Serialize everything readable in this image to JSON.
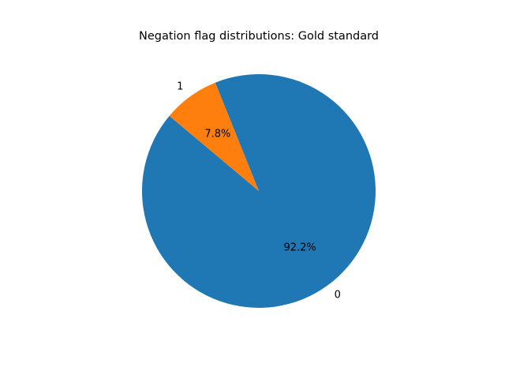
{
  "chart_data": {
    "type": "pie",
    "title": "Negation flag distributions: Gold standard",
    "categories": [
      "0",
      "1"
    ],
    "values": [
      92.2,
      7.8
    ],
    "value_labels": [
      "92.2%",
      "7.8%"
    ],
    "colors": [
      "#1f77b4",
      "#ff7f0e"
    ],
    "start_angle_deg": 140,
    "direction": "counterclockwise",
    "legend": "none",
    "grid": false
  }
}
